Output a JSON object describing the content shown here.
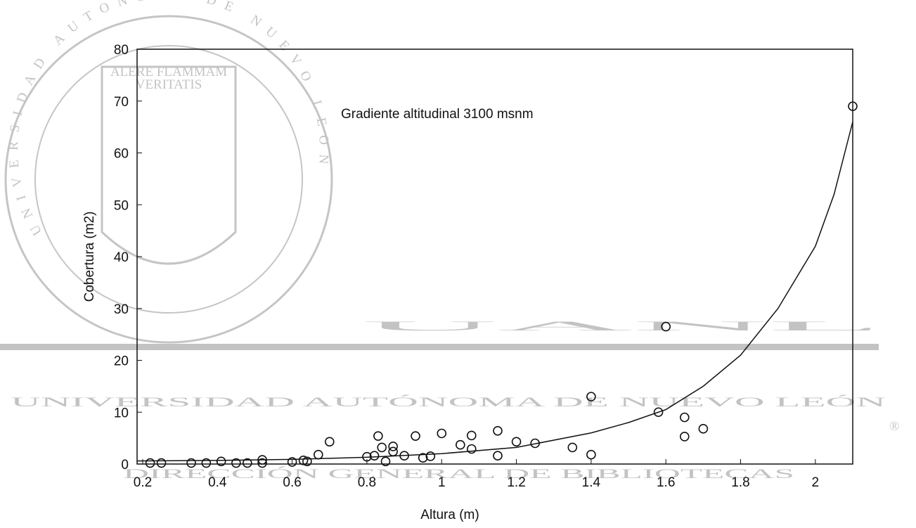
{
  "chart_data": {
    "type": "scatter",
    "annotation": "Gradiente altitudinal 3100 msnm",
    "xlabel": "Altura (m)",
    "ylabel": "Cobertura (m2)",
    "x": [
      0.22,
      0.25,
      0.33,
      0.37,
      0.41,
      0.45,
      0.48,
      0.52,
      0.52,
      0.6,
      0.63,
      0.64,
      0.67,
      0.7,
      0.8,
      0.82,
      0.83,
      0.84,
      0.85,
      0.87,
      0.87,
      0.9,
      0.93,
      0.95,
      0.97,
      1.0,
      1.05,
      1.08,
      1.08,
      1.15,
      1.15,
      1.2,
      1.25,
      1.35,
      1.4,
      1.4,
      1.58,
      1.6,
      1.65,
      1.65,
      1.7,
      2.1
    ],
    "values": [
      0.2,
      0.2,
      0.2,
      0.2,
      0.5,
      0.2,
      0.2,
      0.8,
      0.2,
      0.4,
      0.7,
      0.5,
      1.8,
      4.3,
      1.4,
      1.6,
      5.4,
      3.2,
      0.5,
      3.4,
      2.4,
      1.6,
      5.4,
      1.2,
      1.5,
      5.9,
      3.7,
      5.5,
      2.9,
      6.4,
      1.6,
      4.3,
      4.0,
      3.2,
      13.0,
      1.8,
      10.0,
      26.5,
      9.0,
      5.3,
      6.8,
      69
    ],
    "fit": {
      "x": [
        0.185,
        0.4,
        0.6,
        0.8,
        1.0,
        1.2,
        1.4,
        1.5,
        1.6,
        1.7,
        1.8,
        1.9,
        2.0,
        2.05,
        2.1
      ],
      "values": [
        0.6,
        0.7,
        0.9,
        1.3,
        2.0,
        3.2,
        6.0,
        8.0,
        10.5,
        15.0,
        21.0,
        30.0,
        42.0,
        52.0,
        66.0
      ]
    },
    "xlim": [
      0.185,
      2.1
    ],
    "ylim": [
      0,
      80
    ],
    "xticks": [
      0.2,
      0.4,
      0.6,
      0.8,
      1,
      1.2,
      1.4,
      1.6,
      1.8,
      2
    ],
    "yticks": [
      0,
      10,
      20,
      30,
      40,
      50,
      60,
      70,
      80
    ],
    "marker_color": "#111",
    "line_color": "#111"
  },
  "watermark": {
    "logo": "UANL",
    "university": "UNIVERSIDAD AUTÓNOMA DE NUEVO LEÓN",
    "library": "DIRECCIÓN GENERAL DE BIBLIOTECAS",
    "registered": "®",
    "seal_ring": "UNIVERSIDAD AUTONOMA DE NUEVO LEON",
    "seal_motto_1": "ALERE FLAMMAM",
    "seal_motto_2": "VERITATIS"
  }
}
